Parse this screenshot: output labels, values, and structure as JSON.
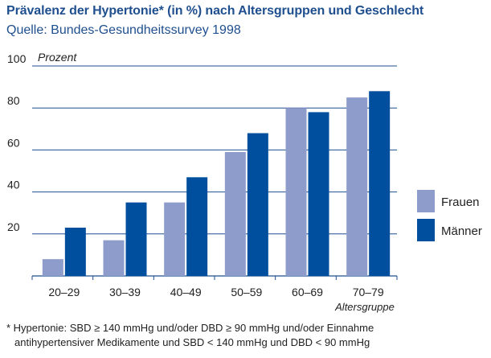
{
  "title": "Prävalenz der Hypertonie* (in %) nach Altersgruppen und Geschlecht",
  "subtitle": "Quelle: Bundes-Gesundheitssurvey 1998",
  "colors": {
    "frauen": "#8e9ccc",
    "maenner": "#004f9e",
    "title": "#1f4f8f",
    "axis": "#1f4f8f"
  },
  "chart_data": {
    "type": "bar",
    "ylabel": "Prozent",
    "xlabel": "Altersgruppe",
    "ylim": [
      0,
      100
    ],
    "yticks": [
      "20",
      "40",
      "60",
      "80",
      "100"
    ],
    "grid": true,
    "categories": [
      "20–29",
      "30–39",
      "40–49",
      "50–59",
      "60–69",
      "70–79"
    ],
    "series": [
      {
        "name": "Frauen",
        "values": [
          8,
          17,
          35,
          59,
          80,
          85
        ]
      },
      {
        "name": "Männer",
        "values": [
          23,
          35,
          47,
          68,
          78,
          88
        ]
      }
    ],
    "legend": [
      "Frauen",
      "Männer"
    ],
    "legend_position": "right"
  },
  "footnote": {
    "line1": "* Hypertonie: SBD ≥ 140 mmHg und/oder DBD ≥ 90 mmHg und/oder Einnahme",
    "line2": "antihypertensiver Medikamente und SBD < 140 mmHg und DBD < 90 mmHg"
  }
}
